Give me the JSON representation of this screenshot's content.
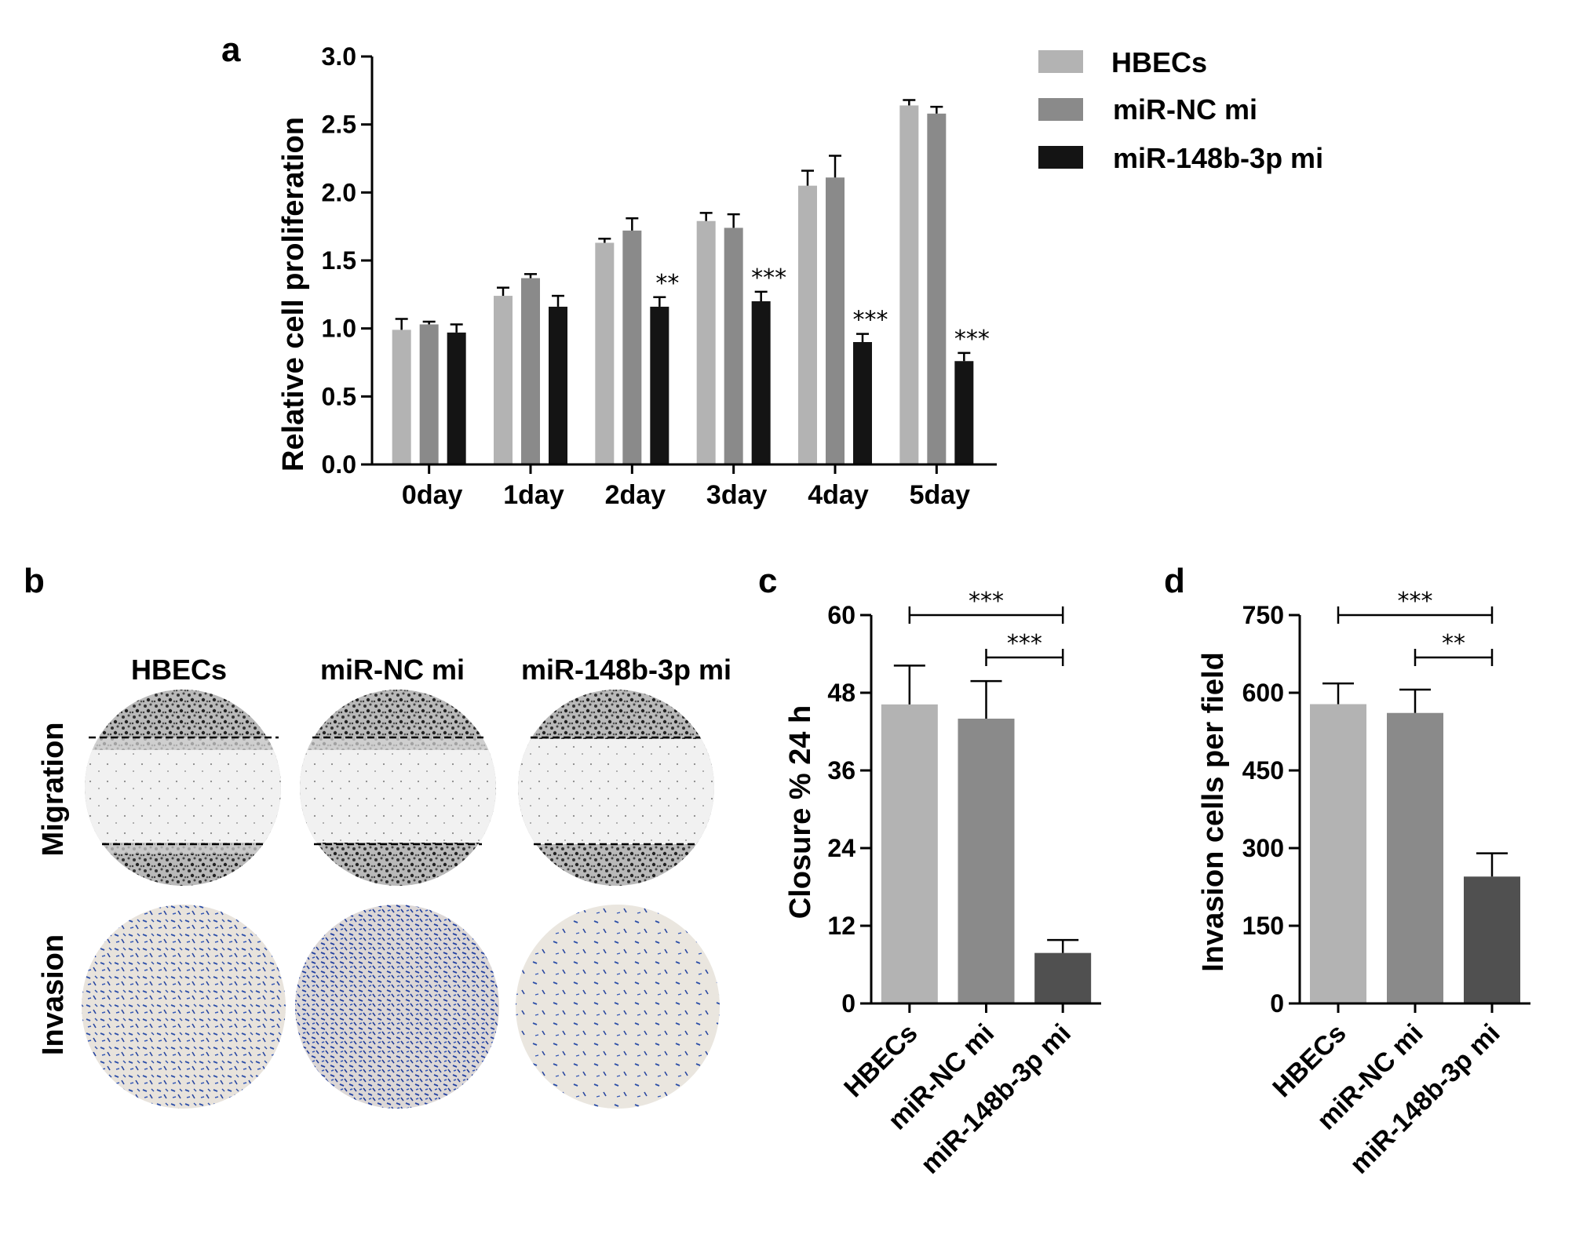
{
  "figure": {
    "panel_b": {
      "letter": "b",
      "columns": [
        "HBECs",
        "miR-NC mi",
        "miR-148b-3p mi"
      ],
      "rows": [
        "Migration",
        "Invasion"
      ]
    }
  },
  "chart_data": [
    {
      "id": "a",
      "type": "bar",
      "panel_letter": "a",
      "title": "",
      "xlabel": "",
      "ylabel": "Relative cell proliferation",
      "ylim": [
        0,
        3.0
      ],
      "yticks": [
        "0.0",
        "0.5",
        "1.0",
        "1.5",
        "2.0",
        "2.5",
        "3.0"
      ],
      "categories": [
        "0day",
        "1day",
        "2day",
        "3day",
        "4day",
        "5day"
      ],
      "series": [
        {
          "name": "HBECs",
          "color": "#b3b3b3",
          "values": [
            0.99,
            1.24,
            1.63,
            1.79,
            2.05,
            2.64
          ],
          "errors": [
            0.08,
            0.06,
            0.03,
            0.06,
            0.11,
            0.04
          ]
        },
        {
          "name": "miR-NC mi",
          "color": "#8a8a8a",
          "values": [
            1.03,
            1.37,
            1.72,
            1.74,
            2.11,
            2.58
          ],
          "errors": [
            0.02,
            0.03,
            0.09,
            0.1,
            0.16,
            0.05
          ]
        },
        {
          "name": "miR-148b-3p mi",
          "color": "#141414",
          "values": [
            0.97,
            1.16,
            1.16,
            1.2,
            0.9,
            0.76
          ],
          "errors": [
            0.06,
            0.08,
            0.07,
            0.07,
            0.06,
            0.06
          ]
        }
      ],
      "annotations": [
        "",
        "",
        "**",
        "***",
        "***",
        "***"
      ],
      "legend": [
        "HBECs",
        "miR-NC mi",
        "miR-148b-3p mi"
      ],
      "legend_position": "top-right"
    },
    {
      "id": "c",
      "type": "bar",
      "panel_letter": "c",
      "title": "",
      "xlabel": "",
      "ylabel": "Closure % 24 h",
      "ylim": [
        0,
        60
      ],
      "yticks": [
        "0",
        "12",
        "24",
        "36",
        "48",
        "60"
      ],
      "categories": [
        "HBECs",
        "miR-NC mi",
        "miR-148b-3p mi"
      ],
      "colors": [
        "#b3b3b3",
        "#8a8a8a",
        "#505050"
      ],
      "values": [
        46.2,
        44.0,
        7.8
      ],
      "errors": [
        6.0,
        5.8,
        2.0
      ],
      "significance": [
        {
          "from": 0,
          "to": 2,
          "label": "***"
        },
        {
          "from": 1,
          "to": 2,
          "label": "***"
        }
      ]
    },
    {
      "id": "d",
      "type": "bar",
      "panel_letter": "d",
      "title": "",
      "xlabel": "",
      "ylabel": "Invasion cells per field",
      "ylim": [
        0,
        750
      ],
      "yticks": [
        "0",
        "150",
        "300",
        "450",
        "600",
        "750"
      ],
      "categories": [
        "HBECs",
        "miR-NC mi",
        "miR-148b-3p mi"
      ],
      "colors": [
        "#b3b3b3",
        "#8a8a8a",
        "#505050"
      ],
      "values": [
        578,
        561,
        245
      ],
      "errors": [
        40,
        45,
        45
      ],
      "significance": [
        {
          "from": 0,
          "to": 2,
          "label": "***"
        },
        {
          "from": 1,
          "to": 2,
          "label": "**"
        }
      ]
    }
  ]
}
